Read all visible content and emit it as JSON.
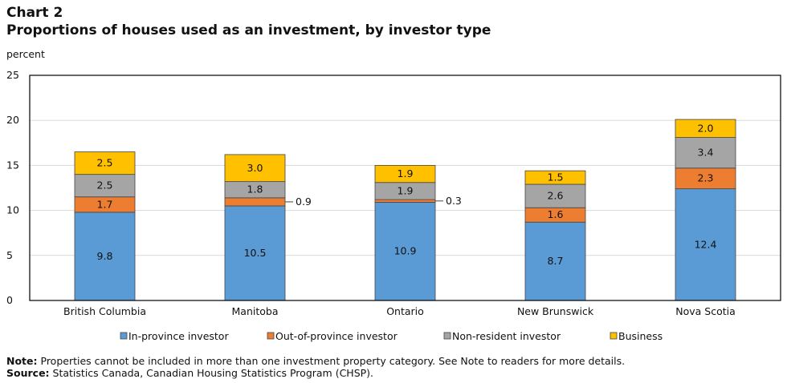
{
  "chart_label": "Chart 2",
  "title": "Proportions of houses used as an investment, by investor type",
  "note_label": "Note:",
  "note_text": "Properties cannot be included in more than one investment property category. See Note to readers for more details.",
  "source_label": "Source:",
  "source_text": "Statistics Canada, Canadian Housing Statistics Program (CHSP).",
  "chart_data": {
    "type": "bar",
    "stacked": true,
    "ylabel": "percent",
    "ylim": [
      0,
      25
    ],
    "yticks": [
      0,
      5,
      10,
      15,
      20,
      25
    ],
    "grid": true,
    "legend_position": "bottom",
    "categories": [
      "British Columbia",
      "Manitoba",
      "Ontario",
      "New Brunswick",
      "Nova Scotia"
    ],
    "series": [
      {
        "name": "In-province investor",
        "color": "#5b9bd5",
        "values": [
          9.8,
          10.5,
          10.9,
          8.7,
          12.4
        ]
      },
      {
        "name": "Out-of-province investor",
        "color": "#ed7d31",
        "values": [
          1.7,
          0.9,
          0.3,
          1.6,
          2.3
        ]
      },
      {
        "name": "Non-resident investor",
        "color": "#a5a5a5",
        "values": [
          2.5,
          1.8,
          1.9,
          2.6,
          3.4
        ]
      },
      {
        "name": "Business",
        "color": "#ffc000",
        "values": [
          2.5,
          3.0,
          1.9,
          1.5,
          2.0
        ]
      }
    ]
  }
}
